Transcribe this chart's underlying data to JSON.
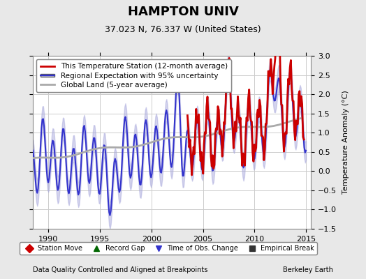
{
  "title": "HAMPTON UNIV",
  "subtitle": "37.023 N, 76.337 W (United States)",
  "ylabel": "Temperature Anomaly (°C)",
  "xlim": [
    1988.5,
    2015.5
  ],
  "ylim": [
    -1.5,
    3.0
  ],
  "yticks": [
    -1.5,
    -1.0,
    -0.5,
    0.0,
    0.5,
    1.0,
    1.5,
    2.0,
    2.5,
    3.0
  ],
  "xticks": [
    1990,
    1995,
    2000,
    2005,
    2010,
    2015
  ],
  "footer_left": "Data Quality Controlled and Aligned at Breakpoints",
  "footer_right": "Berkeley Earth",
  "legend_lines": [
    {
      "label": "This Temperature Station (12-month average)",
      "color": "#cc0000",
      "lw": 2.0
    },
    {
      "label": "Regional Expectation with 95% uncertainty",
      "color": "#3333cc",
      "lw": 1.5
    },
    {
      "label": "Global Land (5-year average)",
      "color": "#aaaaaa",
      "lw": 2.0
    }
  ],
  "legend_markers": [
    {
      "label": "Station Move",
      "color": "#cc0000",
      "marker": "D"
    },
    {
      "label": "Record Gap",
      "color": "#006600",
      "marker": "^"
    },
    {
      "label": "Time of Obs. Change",
      "color": "#3333cc",
      "marker": "v"
    },
    {
      "label": "Empirical Break",
      "color": "#333333",
      "marker": "s"
    }
  ],
  "bg_color": "#e8e8e8",
  "plot_bg_color": "#ffffff",
  "grid_color": "#cccccc",
  "uncertainty_color": "#aaaadd",
  "uncertainty_alpha": 0.5
}
